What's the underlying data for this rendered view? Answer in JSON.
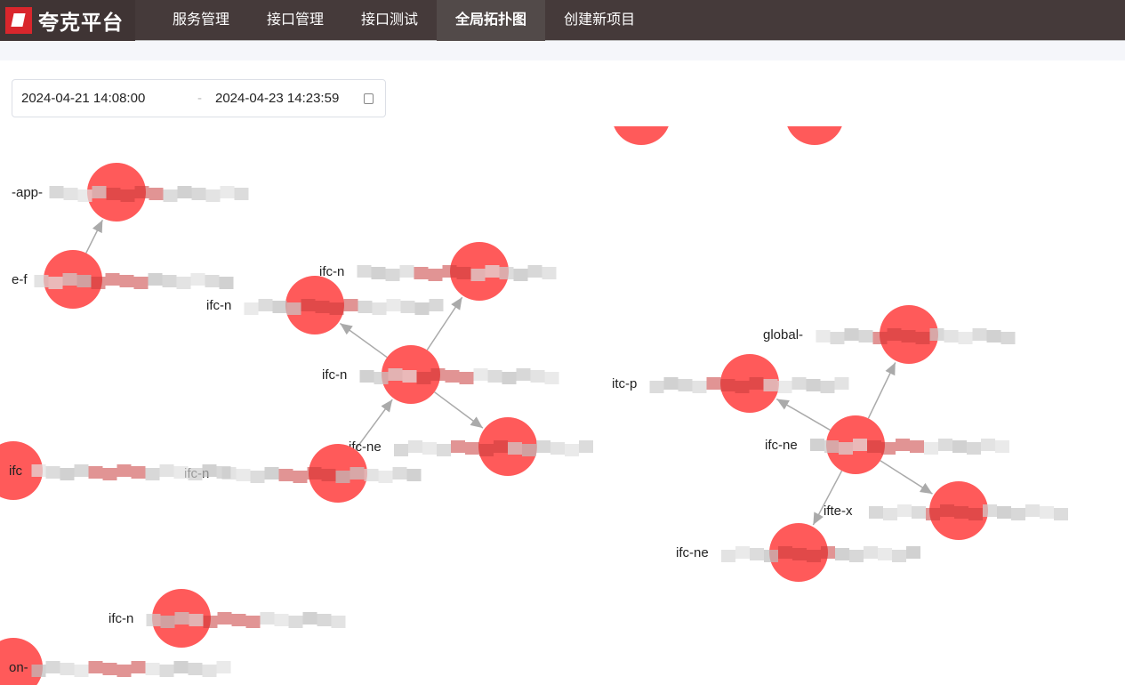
{
  "brand": {
    "name": "夸克平台",
    "color": "#d9262c"
  },
  "nav": [
    {
      "label": "服务管理"
    },
    {
      "label": "接口管理"
    },
    {
      "label": "接口测试"
    },
    {
      "label": "全局拓扑图",
      "active": true
    },
    {
      "label": "创建新项目"
    }
  ],
  "date_range": {
    "start": "2024-04-21 14:08:00",
    "separator": "-",
    "end": "2024-04-23 14:23:59",
    "icon": "calendar-icon"
  },
  "graph": {
    "node_color": "#ff5a5a",
    "edge_color": "#aaaaaa",
    "nodes": [
      {
        "label": "-app-"
      },
      {
        "label": "e-f"
      },
      {
        "label": "ifc-n"
      },
      {
        "label": "ifc-n"
      },
      {
        "label": "ifc-n"
      },
      {
        "label": "ifc-ne"
      },
      {
        "label": "ifc-n"
      },
      {
        "label": "global-"
      },
      {
        "label": "itc-p"
      },
      {
        "label": "ifc-ne"
      },
      {
        "label": "ifte-x"
      },
      {
        "label": "ifc-ne"
      },
      {
        "label": "ifc"
      },
      {
        "label": "ifc-n"
      },
      {
        "label": "on-"
      },
      {
        "label": ""
      },
      {
        "label": ""
      }
    ],
    "edges": [
      [
        1,
        0
      ],
      [
        4,
        2
      ],
      [
        4,
        3
      ],
      [
        4,
        5
      ],
      [
        6,
        4
      ],
      [
        9,
        7
      ],
      [
        9,
        8
      ],
      [
        9,
        10
      ],
      [
        9,
        11
      ]
    ]
  }
}
